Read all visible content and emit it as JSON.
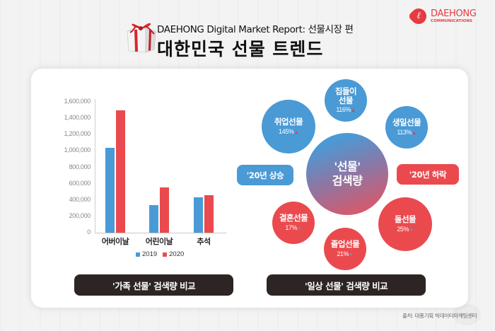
{
  "header": {
    "subtitle": "DAEHONG Digital Market Report: 선물시장 편",
    "title": "대한민국 선물 트렌드",
    "logo": {
      "mark": "ℓ",
      "name": "DAEHONG",
      "sub": "COMMUNICATIONS"
    }
  },
  "colors": {
    "blue": "#4a9ad6",
    "red": "#ea4a4e",
    "dark": "#2d2424",
    "brand": "#e53b41"
  },
  "chart_data": {
    "type": "bar",
    "title": "'가족 선물' 검색량 비교",
    "categories": [
      "어버이날",
      "어린이날",
      "추석"
    ],
    "series": [
      {
        "name": "2019",
        "color": "#4a9ad6",
        "values": [
          1040000,
          340000,
          430000
        ]
      },
      {
        "name": "2020",
        "color": "#ea4a4e",
        "values": [
          1500000,
          550000,
          455000
        ]
      }
    ],
    "xlabel": "",
    "ylabel": "",
    "ylim": [
      0,
      1600000
    ],
    "yticks": [
      "1,600,000",
      "1,400,000",
      "1,200,000",
      "1,000,000",
      "800,000",
      "600,000",
      "400,000",
      "200,000",
      "0"
    ],
    "grid": false,
    "legend_position": "bottom"
  },
  "left_panel": {
    "caption": "'가족 선물' 검색량 비교"
  },
  "right_panel": {
    "caption": "'일상 선물' 검색량 비교",
    "center": {
      "line1": "'선물'",
      "line2": "검색량"
    },
    "rise_label": "'20년 상승",
    "fall_label": "'20년 하락",
    "rising": [
      {
        "name": "취업선물",
        "pct": "145%",
        "arrow": "▲"
      },
      {
        "name_line1": "집들이",
        "name_line2": "선물",
        "pct": "116%",
        "arrow": "▲"
      },
      {
        "name": "생일선물",
        "pct": "113%",
        "arrow": "▲"
      }
    ],
    "falling": [
      {
        "name": "결혼선물",
        "pct": "17%",
        "arrow": "▼"
      },
      {
        "name": "졸업선물",
        "pct": "21%",
        "arrow": "▼"
      },
      {
        "name": "돌선물",
        "pct": "25%",
        "arrow": "▼"
      }
    ]
  },
  "footer": {
    "source": "출처: 대홍기획 빅데이터마케팅센터"
  }
}
